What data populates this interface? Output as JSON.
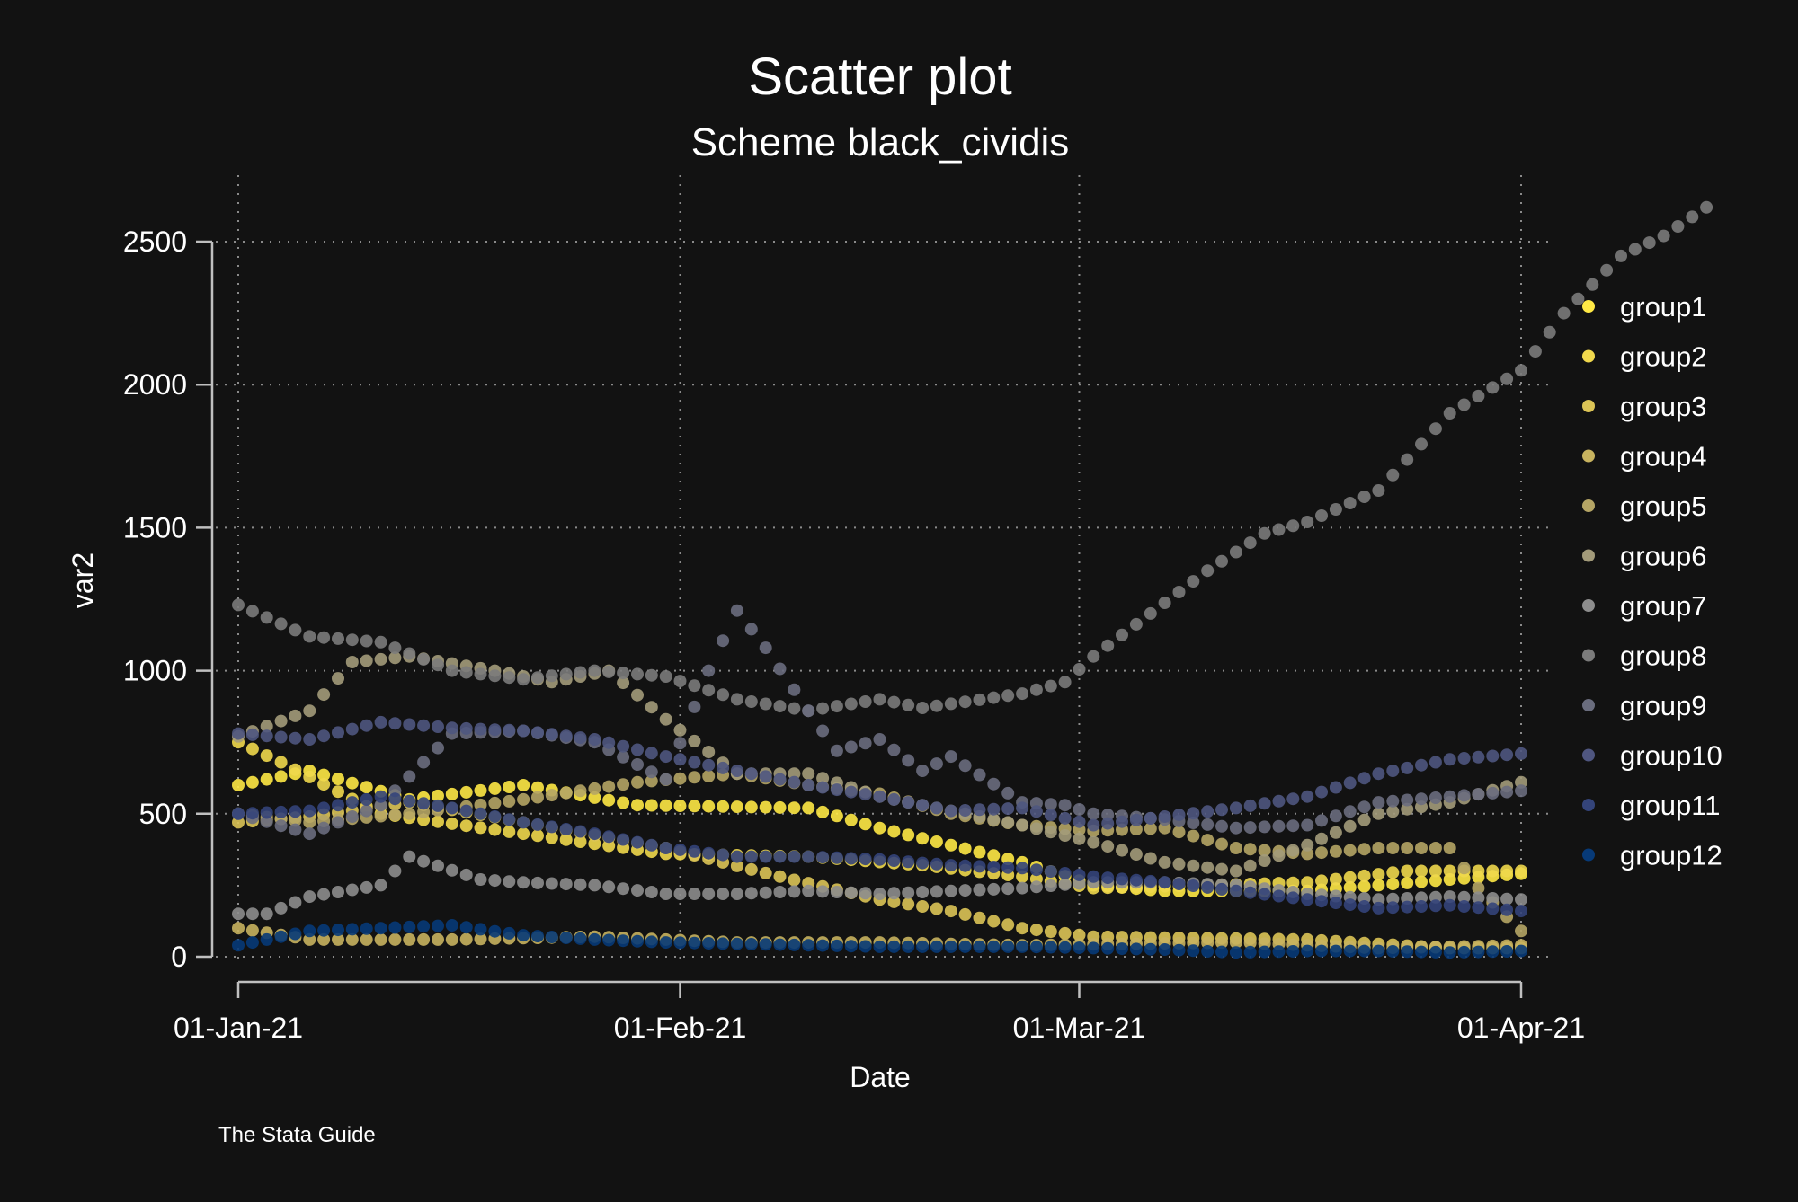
{
  "chart_data": {
    "type": "scatter",
    "title": "Scatter plot",
    "subtitle": "Scheme black_cividis",
    "xlabel": "Date",
    "ylabel": "var2",
    "note": "The Stata Guide",
    "x_start": "2021-01-01",
    "xlim": [
      "2021-01-01",
      "2021-04-01"
    ],
    "ylim": [
      0,
      2500
    ],
    "x_ticks": [
      {
        "date": "2021-01-01",
        "label": "01-Jan-21"
      },
      {
        "date": "2021-02-01",
        "label": "01-Feb-21"
      },
      {
        "date": "2021-03-01",
        "label": "01-Mar-21"
      },
      {
        "date": "2021-04-01",
        "label": "01-Apr-21"
      }
    ],
    "y_ticks": [
      0,
      500,
      1000,
      1500,
      2000,
      2500
    ],
    "grid": true,
    "legend_position": "right",
    "background": "#121212",
    "series": [
      {
        "name": "group1",
        "color": "#ffe945",
        "knots": [
          [
            0,
            600
          ],
          [
            5,
            650
          ],
          [
            12,
            550
          ],
          [
            20,
            600
          ],
          [
            28,
            530
          ],
          [
            40,
            520
          ],
          [
            45,
            450
          ],
          [
            55,
            330
          ],
          [
            60,
            250
          ],
          [
            65,
            230
          ],
          [
            75,
            230
          ],
          [
            80,
            250
          ],
          [
            90,
            290
          ]
        ]
      },
      {
        "name": "group2",
        "color": "#f0d84d",
        "knots": [
          [
            0,
            750
          ],
          [
            3,
            680
          ],
          [
            10,
            500
          ],
          [
            20,
            430
          ],
          [
            30,
            360
          ],
          [
            40,
            350
          ],
          [
            48,
            320
          ],
          [
            55,
            280
          ],
          [
            60,
            240
          ],
          [
            68,
            250
          ],
          [
            75,
            260
          ],
          [
            82,
            300
          ],
          [
            90,
            300
          ]
        ]
      },
      {
        "name": "group3",
        "color": "#dcc456",
        "knots": [
          [
            0,
            470
          ],
          [
            5,
            490
          ],
          [
            12,
            540
          ],
          [
            20,
            470
          ],
          [
            30,
            380
          ],
          [
            38,
            280
          ],
          [
            45,
            200
          ],
          [
            50,
            160
          ],
          [
            55,
            100
          ],
          [
            60,
            70
          ],
          [
            75,
            60
          ],
          [
            85,
            30
          ],
          [
            90,
            30
          ]
        ]
      },
      {
        "name": "group4",
        "color": "#c8b35f",
        "knots": [
          [
            0,
            100
          ],
          [
            5,
            60
          ],
          [
            15,
            60
          ],
          [
            25,
            70
          ],
          [
            35,
            50
          ],
          [
            45,
            50
          ],
          [
            55,
            40
          ],
          [
            70,
            50
          ],
          [
            80,
            30
          ],
          [
            90,
            40
          ]
        ]
      },
      {
        "name": "group5",
        "color": "#b5a565",
        "knots": [
          [
            0,
            500
          ],
          [
            5,
            470
          ],
          [
            12,
            500
          ],
          [
            20,
            550
          ],
          [
            28,
            610
          ],
          [
            35,
            640
          ],
          [
            40,
            600
          ],
          [
            45,
            570
          ],
          [
            50,
            500
          ],
          [
            55,
            460
          ],
          [
            60,
            440
          ],
          [
            65,
            450
          ],
          [
            70,
            380
          ],
          [
            75,
            360
          ],
          [
            80,
            380
          ],
          [
            85,
            380
          ],
          [
            87,
            240
          ],
          [
            90,
            90
          ]
        ]
      },
      {
        "name": "group6",
        "color": "#a39b7a",
        "knots": [
          [
            0,
            770
          ],
          [
            5,
            860
          ],
          [
            8,
            1030
          ],
          [
            12,
            1050
          ],
          [
            18,
            1000
          ],
          [
            22,
            960
          ],
          [
            26,
            1000
          ],
          [
            30,
            830
          ],
          [
            35,
            640
          ],
          [
            40,
            640
          ],
          [
            45,
            560
          ],
          [
            50,
            510
          ],
          [
            55,
            460
          ],
          [
            60,
            400
          ],
          [
            65,
            330
          ],
          [
            70,
            300
          ],
          [
            75,
            390
          ],
          [
            80,
            500
          ],
          [
            85,
            540
          ],
          [
            90,
            610
          ]
        ]
      },
      {
        "name": "group7",
        "color": "#8d8d8d",
        "knots": [
          [
            0,
            150
          ],
          [
            2,
            150
          ],
          [
            5,
            210
          ],
          [
            10,
            250
          ],
          [
            12,
            350
          ],
          [
            17,
            270
          ],
          [
            20,
            260
          ],
          [
            25,
            250
          ],
          [
            30,
            220
          ],
          [
            35,
            220
          ],
          [
            40,
            230
          ],
          [
            45,
            220
          ],
          [
            50,
            230
          ],
          [
            55,
            240
          ],
          [
            60,
            260
          ],
          [
            65,
            260
          ],
          [
            70,
            250
          ],
          [
            75,
            220
          ],
          [
            80,
            200
          ],
          [
            85,
            210
          ],
          [
            90,
            200
          ]
        ]
      },
      {
        "name": "group8",
        "color": "#7b7b7b",
        "knots": [
          [
            0,
            1230
          ],
          [
            5,
            1120
          ],
          [
            10,
            1100
          ],
          [
            15,
            1000
          ],
          [
            20,
            970
          ],
          [
            25,
            1000
          ],
          [
            30,
            980
          ],
          [
            35,
            900
          ],
          [
            40,
            860
          ],
          [
            45,
            900
          ],
          [
            48,
            870
          ],
          [
            55,
            920
          ],
          [
            58,
            960
          ],
          [
            60,
            1050
          ],
          [
            64,
            1200
          ],
          [
            68,
            1350
          ],
          [
            72,
            1480
          ],
          [
            75,
            1520
          ],
          [
            80,
            1630
          ],
          [
            85,
            1900
          ],
          [
            90,
            2050
          ],
          [
            93,
            2250
          ],
          [
            97,
            2450
          ],
          [
            100,
            2520
          ],
          [
            103,
            2620
          ]
        ]
      },
      {
        "name": "group9",
        "color": "#6a6d7e",
        "knots": [
          [
            0,
            500
          ],
          [
            5,
            430
          ],
          [
            10,
            530
          ],
          [
            15,
            780
          ],
          [
            20,
            790
          ],
          [
            25,
            750
          ],
          [
            30,
            620
          ],
          [
            33,
            1000
          ],
          [
            35,
            1210
          ],
          [
            37,
            1080
          ],
          [
            40,
            860
          ],
          [
            42,
            720
          ],
          [
            45,
            760
          ],
          [
            48,
            650
          ],
          [
            50,
            700
          ],
          [
            55,
            540
          ],
          [
            58,
            530
          ],
          [
            60,
            500
          ],
          [
            65,
            480
          ],
          [
            70,
            450
          ],
          [
            75,
            460
          ],
          [
            80,
            540
          ],
          [
            85,
            560
          ],
          [
            90,
            580
          ]
        ]
      },
      {
        "name": "group10",
        "color": "#4f5680",
        "knots": [
          [
            0,
            780
          ],
          [
            5,
            760
          ],
          [
            10,
            820
          ],
          [
            15,
            800
          ],
          [
            20,
            790
          ],
          [
            25,
            760
          ],
          [
            30,
            700
          ],
          [
            35,
            650
          ],
          [
            40,
            600
          ],
          [
            45,
            560
          ],
          [
            50,
            510
          ],
          [
            55,
            520
          ],
          [
            60,
            460
          ],
          [
            65,
            490
          ],
          [
            70,
            520
          ],
          [
            75,
            560
          ],
          [
            80,
            640
          ],
          [
            85,
            690
          ],
          [
            90,
            710
          ]
        ]
      },
      {
        "name": "group11",
        "color": "#34447a",
        "knots": [
          [
            0,
            500
          ],
          [
            5,
            510
          ],
          [
            10,
            560
          ],
          [
            15,
            520
          ],
          [
            20,
            470
          ],
          [
            25,
            430
          ],
          [
            30,
            380
          ],
          [
            35,
            350
          ],
          [
            40,
            350
          ],
          [
            45,
            340
          ],
          [
            50,
            320
          ],
          [
            55,
            310
          ],
          [
            60,
            280
          ],
          [
            65,
            260
          ],
          [
            70,
            230
          ],
          [
            75,
            200
          ],
          [
            80,
            170
          ],
          [
            85,
            180
          ],
          [
            90,
            160
          ]
        ]
      },
      {
        "name": "group12",
        "color": "#073a78",
        "knots": [
          [
            0,
            40
          ],
          [
            5,
            90
          ],
          [
            10,
            100
          ],
          [
            15,
            110
          ],
          [
            20,
            75
          ],
          [
            25,
            60
          ],
          [
            30,
            50
          ],
          [
            35,
            45
          ],
          [
            40,
            40
          ],
          [
            45,
            35
          ],
          [
            50,
            35
          ],
          [
            55,
            35
          ],
          [
            60,
            30
          ],
          [
            65,
            25
          ],
          [
            70,
            15
          ],
          [
            75,
            20
          ],
          [
            80,
            20
          ],
          [
            85,
            15
          ],
          [
            90,
            20
          ]
        ]
      }
    ]
  }
}
